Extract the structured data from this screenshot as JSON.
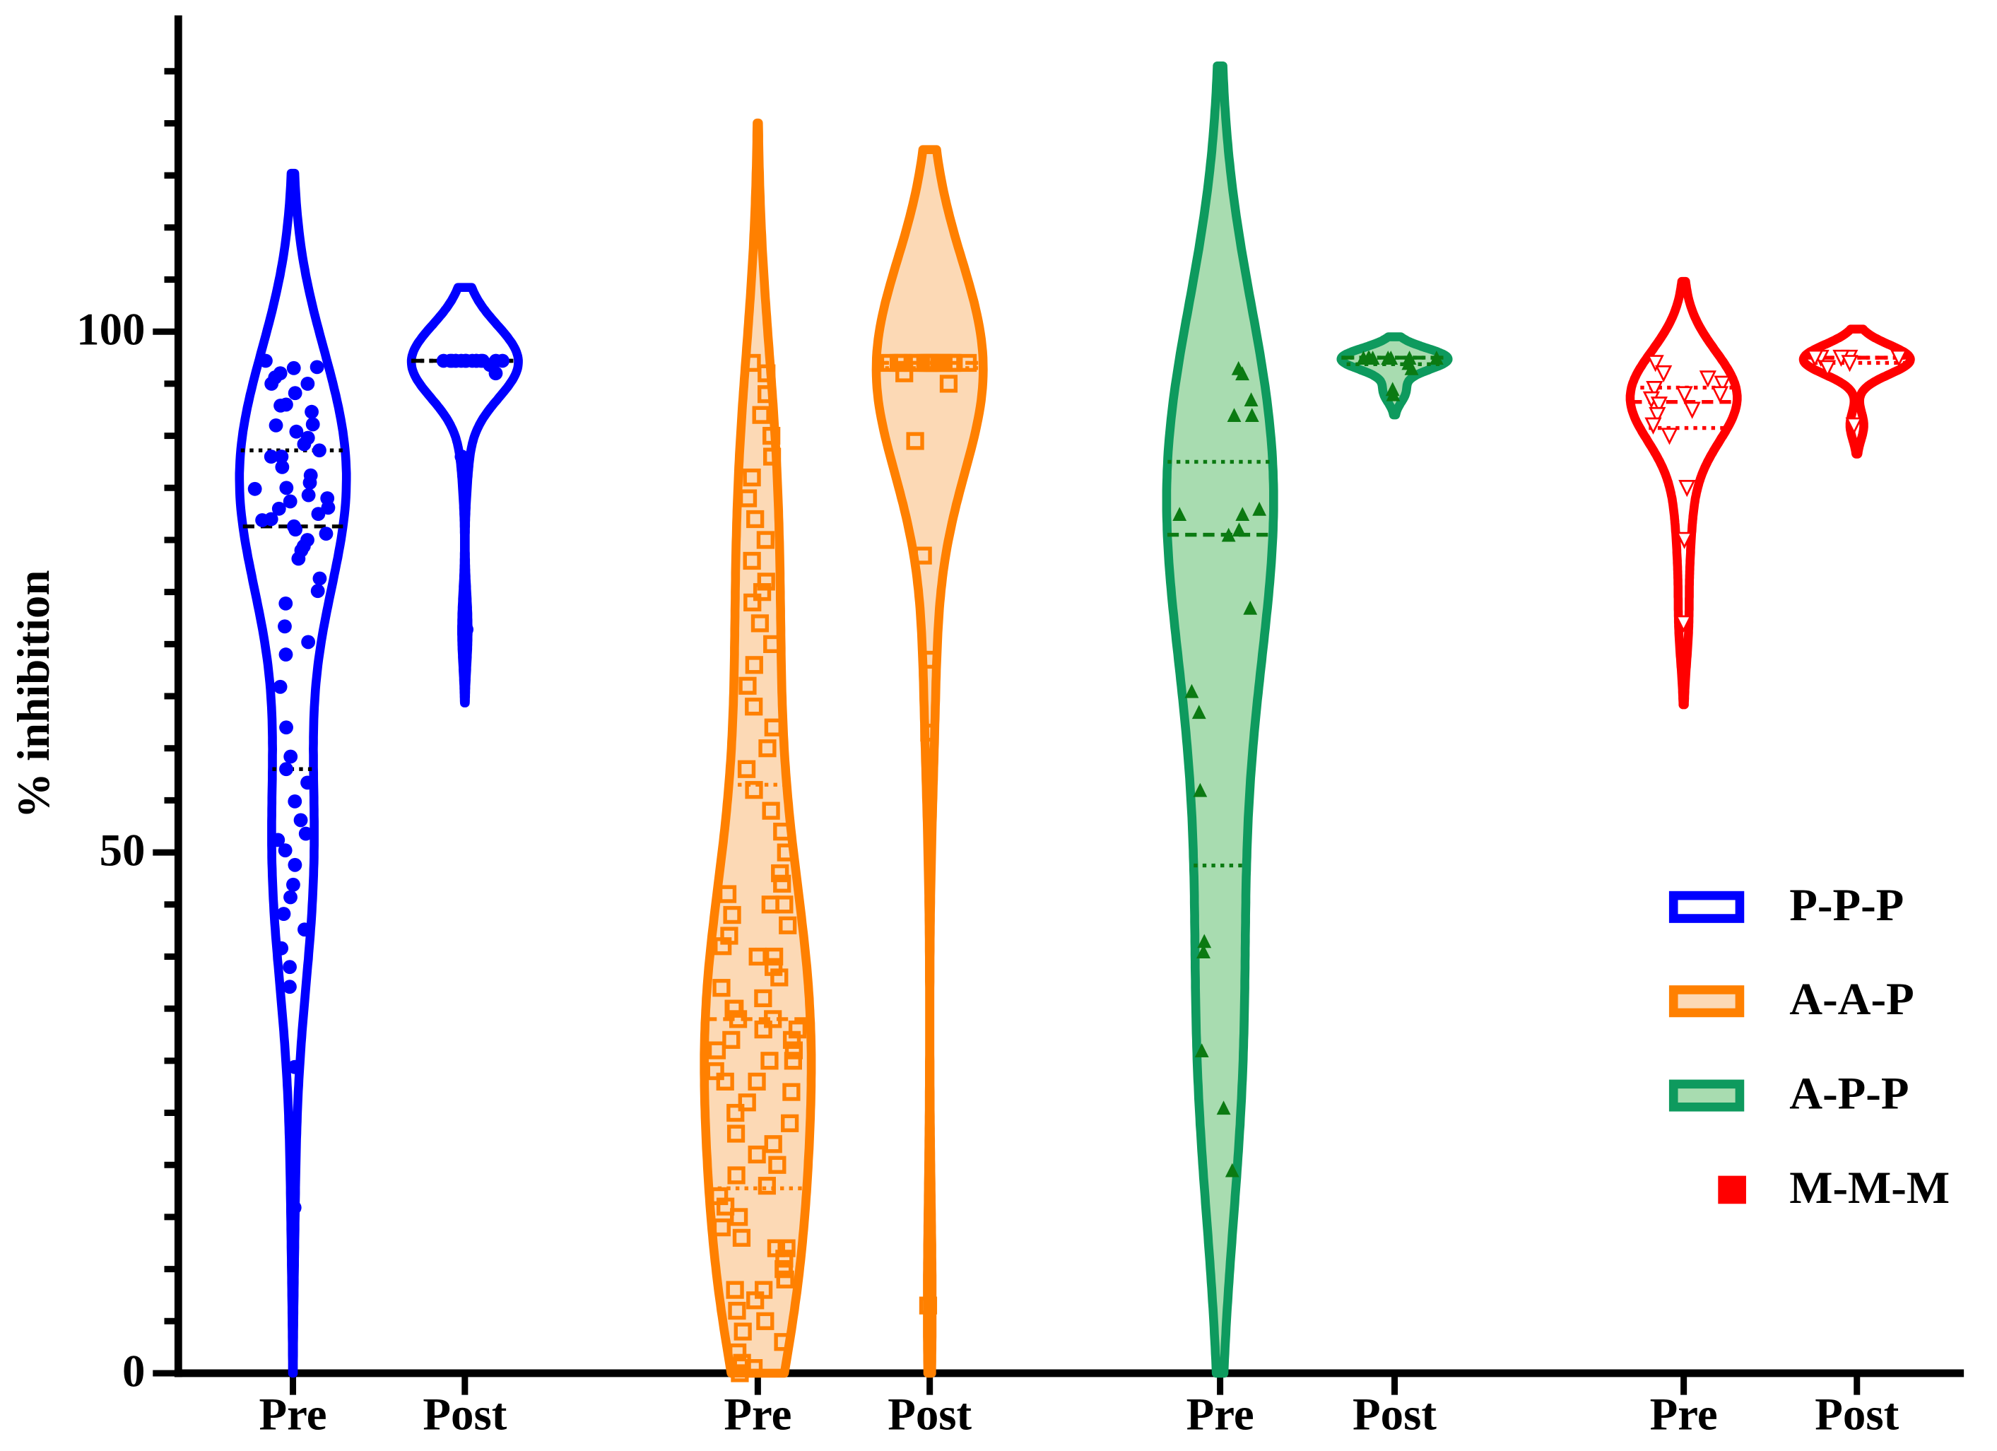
{
  "chart_data": {
    "type": "violin",
    "y_label": "% inhibition",
    "ylim": [
      0,
      130
    ],
    "yticks": [
      0,
      50,
      100
    ],
    "yminorticks": [
      5,
      10,
      15,
      20,
      25,
      30,
      35,
      40,
      45,
      55,
      60,
      65,
      70,
      75,
      80,
      85,
      90,
      95,
      105,
      110,
      115,
      120,
      125
    ],
    "categories": [
      "Pre",
      "Post",
      "Pre",
      "Post",
      "Pre",
      "Post",
      "Pre",
      "Post"
    ],
    "legend": "lower right",
    "series": [
      {
        "name": "P-P-P",
        "color": "#0000ff",
        "fill": "#ffffff",
        "marker": "circle",
        "values": [
          [
            97.2,
            96.6,
            96,
            95.6,
            95,
            94.1,
            92.9,
            92.3,
            91.1,
            90.4,
            89.8,
            89.2,
            88.6,
            88,
            87,
            86.2,
            85.5,
            84.9,
            84.3,
            83.7,
            83.1,
            82.5,
            81.9,
            81.3,
            80.6,
            80,
            79.4,
            78.2,
            76.3,
            75.1,
            73.9,
            71.7,
            70.2,
            69,
            65.9,
            62,
            59.2,
            58,
            56.7,
            54.9,
            53.1,
            51.8,
            51.2,
            50.2,
            48.8,
            46.9,
            45.7,
            44.1,
            42.6,
            40.8,
            39,
            37.1,
            29.4,
            15.9,
            96.5,
            95,
            93,
            91,
            88,
            85,
            83,
            81,
            79,
            82,
            84
          ],
          [
            97.2,
            97.2,
            97.2,
            97.2,
            97.2,
            97.2,
            97.2,
            97.2,
            97.2,
            97.2,
            97.2,
            97.2,
            97.2,
            97.2,
            97.2,
            96.8,
            96,
            88,
            71.4
          ]
        ]
      },
      {
        "name": "A-A-P",
        "color": "#ff8000",
        "fill": "#fcd9b5",
        "marker": "square",
        "values": [
          [
            0,
            0.5,
            1,
            2,
            3,
            4,
            5,
            6,
            7,
            8,
            8,
            9,
            10,
            10,
            11,
            12,
            12,
            13,
            14,
            15,
            16,
            17,
            18,
            19,
            20,
            21,
            22,
            23,
            24,
            25,
            26,
            27,
            28,
            28,
            29,
            30,
            30,
            31,
            31,
            32,
            32,
            33,
            33,
            34,
            34,
            35,
            35,
            36,
            37,
            38,
            39,
            40,
            40,
            41,
            42,
            43,
            44,
            45,
            45,
            46,
            47,
            48,
            50,
            52,
            54,
            56,
            58,
            60,
            62,
            64,
            66,
            68,
            70,
            72,
            74,
            75,
            76,
            78,
            80,
            82,
            84,
            86,
            88,
            90,
            92,
            94,
            96,
            97
          ],
          [
            97,
            97,
            97,
            97,
            97,
            97,
            97,
            97,
            97,
            97,
            97,
            97,
            97,
            97,
            97,
            97,
            97,
            97,
            97,
            97,
            96,
            95,
            89.5,
            78.5,
            68.5,
            61.5,
            6.5
          ]
        ]
      },
      {
        "name": "A-P-P",
        "color": "#0e9a5e",
        "fill": "#a8dcb0",
        "marker": "triangle",
        "marker_color": "#0b7a12",
        "values": [
          [
            96.5,
            96,
            93.5,
            92,
            92,
            83,
            82.5,
            82.5,
            80.5,
            81,
            73.5,
            65.5,
            63.5,
            56,
            41.5,
            40.5,
            31,
            25.5,
            19.5
          ],
          [
            97.5,
            97.5,
            97.5,
            97.5,
            97.5,
            97.5,
            97.5,
            97.5,
            97,
            96.5,
            94.5,
            94
          ]
        ]
      },
      {
        "name": "M-M-M",
        "color": "#ff0000",
        "fill": "#ffffff",
        "marker": "triangle-down",
        "values": [
          [
            97,
            96,
            95.5,
            95,
            94.5,
            94,
            94,
            93.5,
            93,
            92.5,
            92,
            91,
            90,
            85,
            80,
            72
          ],
          [
            97.5,
            97.5,
            97.5,
            97.5,
            97.5,
            97.5,
            97,
            96.5,
            91
          ]
        ]
      }
    ]
  }
}
